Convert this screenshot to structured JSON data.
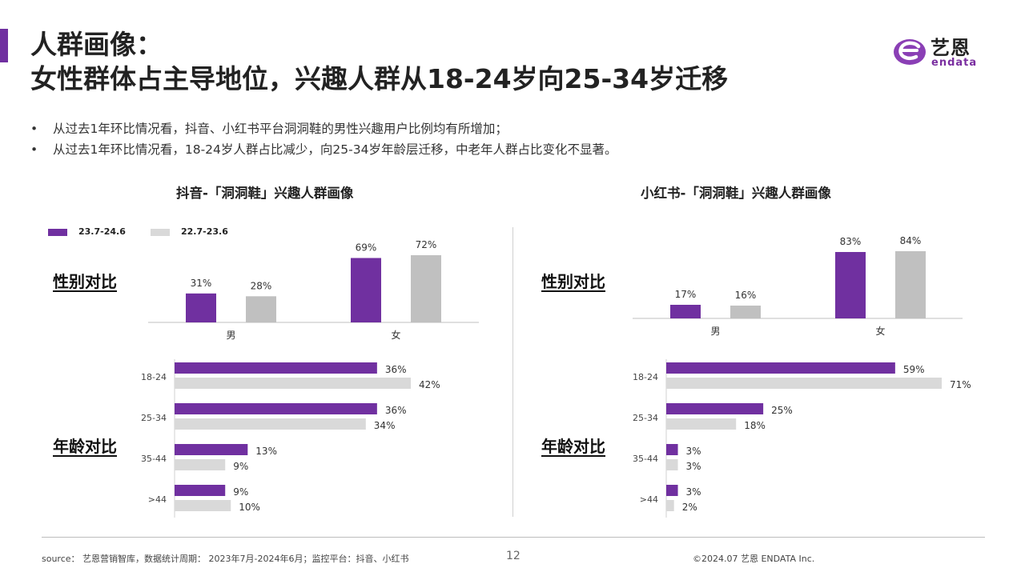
{
  "header": {
    "title_line1": "人群画像：",
    "title_line2": "女性群体占主导地位，兴趣人群从18-24岁向25-34岁迁移",
    "accent_color": "#7030a0"
  },
  "logo": {
    "cn": "艺恩",
    "en": "endata",
    "icon": "endata-e-logo-icon"
  },
  "bullets": [
    "从过去1年环比情况看，抖音、小红书平台洞洞鞋的男性兴趣用户比例均有所增加；",
    "从过去1年环比情况看，18-24岁人群占比减少，向25-34岁年龄层迁移，中老年人群占比变化不显著。"
  ],
  "bullet_symbol": "•",
  "legend": [
    {
      "label": "23.7-24.6",
      "color": "#7030a0"
    },
    {
      "label": "22.7-23.6",
      "color": "#d9d9d9"
    }
  ],
  "sections": {
    "gender": "性别对比",
    "age": "年龄对比"
  },
  "chart_data": [
    {
      "type": "bar",
      "title": "抖音-「洞洞鞋」兴趣人群画像",
      "subtitle": "性别对比",
      "categories": [
        "男",
        "女"
      ],
      "series": [
        {
          "name": "23.7-24.6",
          "values": [
            31,
            69
          ],
          "labels": [
            "31%",
            "69%"
          ],
          "color": "#7030a0"
        },
        {
          "name": "22.7-23.6",
          "values": [
            28,
            72
          ],
          "labels": [
            "28%",
            "72%"
          ],
          "color": "#c0c0c0"
        }
      ],
      "ylim": [
        0,
        72
      ]
    },
    {
      "type": "bar",
      "orientation": "horizontal",
      "title": "抖音-「洞洞鞋」兴趣人群画像",
      "subtitle": "年龄对比",
      "categories": [
        "18-24",
        "25-34",
        "35-44",
        ">44"
      ],
      "series": [
        {
          "name": "23.7-24.6",
          "values": [
            36,
            36,
            13,
            9
          ],
          "labels": [
            "36%",
            "36%",
            "13%",
            "9%"
          ],
          "color": "#7030a0"
        },
        {
          "name": "22.7-23.6",
          "values": [
            42,
            34,
            9,
            10
          ],
          "labels": [
            "42%",
            "34%",
            "9%",
            "10%"
          ],
          "color": "#d9d9d9"
        }
      ],
      "xlim": [
        0,
        42
      ]
    },
    {
      "type": "bar",
      "title": "小红书-「洞洞鞋」兴趣人群画像",
      "subtitle": "性别对比",
      "categories": [
        "男",
        "女"
      ],
      "series": [
        {
          "name": "23.7-24.6",
          "values": [
            17,
            83
          ],
          "labels": [
            "17%",
            "83%"
          ],
          "color": "#7030a0"
        },
        {
          "name": "22.7-23.6",
          "values": [
            16,
            84
          ],
          "labels": [
            "16%",
            "84%"
          ],
          "color": "#c0c0c0"
        }
      ],
      "ylim": [
        0,
        84
      ]
    },
    {
      "type": "bar",
      "orientation": "horizontal",
      "title": "小红书-「洞洞鞋」兴趣人群画像",
      "subtitle": "年龄对比",
      "categories": [
        "18-24",
        "25-34",
        "35-44",
        ">44"
      ],
      "series": [
        {
          "name": "23.7-24.6",
          "values": [
            59,
            25,
            3,
            3
          ],
          "labels": [
            "59%",
            "25%",
            "3%",
            "3%"
          ],
          "color": "#7030a0"
        },
        {
          "name": "22.7-23.6",
          "values": [
            71,
            18,
            3,
            2
          ],
          "labels": [
            "71%",
            "18%",
            "3%",
            "2%"
          ],
          "color": "#d9d9d9"
        }
      ],
      "xlim": [
        0,
        71
      ]
    }
  ],
  "footer": {
    "source": "source： 艺恩营销智库，数据统计周期： 2023年7月-2024年6月；监控平台：抖音、小红书",
    "page": "12",
    "copyright": "©2024.07 艺恩 ENDATA Inc."
  }
}
